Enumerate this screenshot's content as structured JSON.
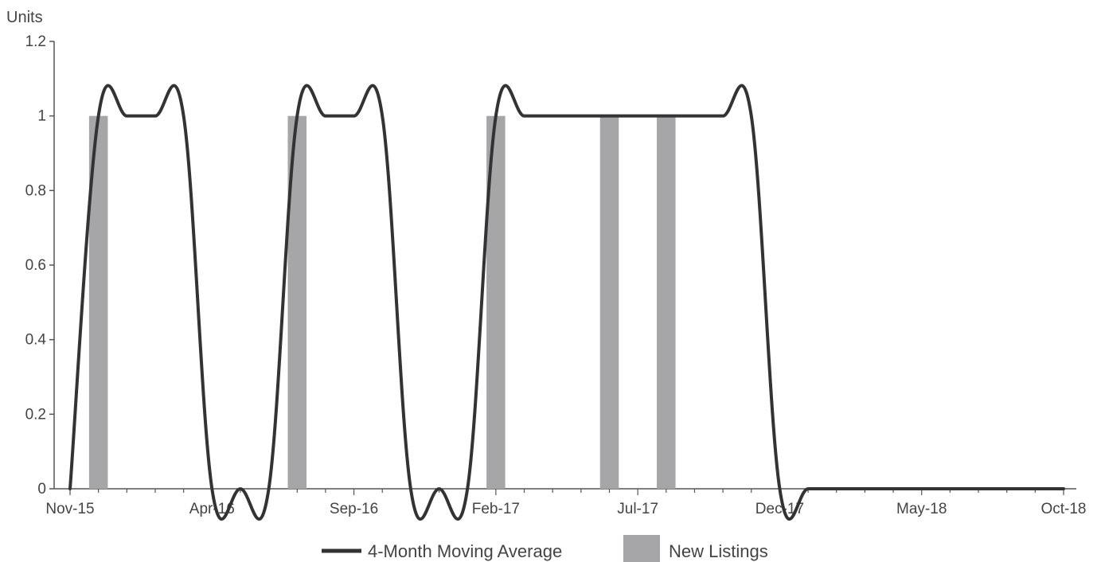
{
  "chart_data": {
    "type": "bar",
    "ylabel": "Units",
    "ylim": [
      0,
      1.2
    ],
    "yticks": [
      "0",
      "0.2",
      "0.4",
      "0.6",
      "0.8",
      "1",
      "1.2"
    ],
    "x_months": [
      "Nov-15",
      "Dec-15",
      "Jan-16",
      "Feb-16",
      "Mar-16",
      "Apr-16",
      "May-16",
      "Jun-16",
      "Jul-16",
      "Aug-16",
      "Sep-16",
      "Oct-16",
      "Nov-16",
      "Dec-16",
      "Jan-17",
      "Feb-17",
      "Mar-17",
      "Apr-17",
      "May-17",
      "Jun-17",
      "Jul-17",
      "Aug-17",
      "Sep-17",
      "Oct-17",
      "Nov-17",
      "Dec-17",
      "Jan-18",
      "Feb-18",
      "Mar-18",
      "Apr-18",
      "May-18",
      "Jun-18",
      "Jul-18",
      "Aug-18",
      "Sep-18",
      "Oct-18"
    ],
    "x_tick_labels": [
      "Nov-15",
      "Apr-16",
      "Sep-16",
      "Feb-17",
      "Jul-17",
      "Dec-17",
      "May-18",
      "Oct-18"
    ],
    "series": [
      {
        "name": "New Listings",
        "type": "bar",
        "color": "#a6a6a8",
        "values": [
          0,
          1,
          0,
          0,
          0,
          0,
          0,
          0,
          1,
          0,
          0,
          0,
          0,
          0,
          0,
          1,
          0,
          0,
          0,
          1,
          0,
          1,
          0,
          0,
          0,
          0,
          0,
          0,
          0,
          0,
          0,
          0,
          0,
          0,
          0,
          0
        ]
      },
      {
        "name": "4-Month Moving Average",
        "type": "line",
        "color": "#333333",
        "values": [
          0,
          1,
          1,
          1,
          1,
          0,
          0,
          0,
          1,
          1,
          1,
          1,
          0,
          0,
          0,
          1,
          1,
          1,
          1,
          1,
          1,
          1,
          1,
          1,
          1,
          0,
          0,
          0,
          0,
          0,
          0,
          0,
          0,
          0,
          0,
          0
        ]
      }
    ],
    "legend": {
      "placement": "bottom-center",
      "items": [
        "4-Month Moving Average",
        "New Listings"
      ]
    },
    "grid": false
  }
}
